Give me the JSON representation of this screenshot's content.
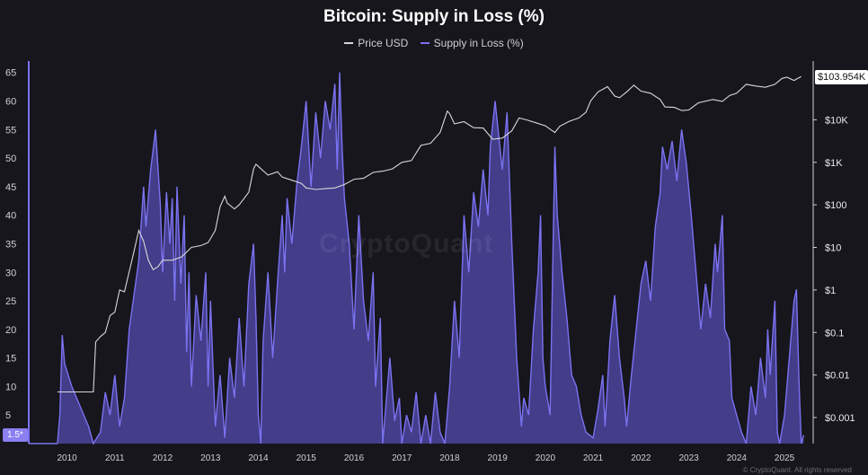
{
  "title": "Bitcoin: Supply in Loss (%)",
  "legend": [
    {
      "label": "Price USD",
      "color": "#d8d8d8"
    },
    {
      "label": "Supply in Loss (%)",
      "color": "#7b72f0"
    }
  ],
  "watermark": "CryptoQuant",
  "copyright": "© CryptoQuant. All rights reserved",
  "last_price_label": "$103.954K",
  "last_loss_label": "1.5*",
  "chart_data": {
    "type": "line",
    "x_ticks": [
      "2010",
      "2011",
      "2012",
      "2013",
      "2014",
      "2015",
      "2016",
      "2017",
      "2018",
      "2019",
      "2020",
      "2021",
      "2022",
      "2023",
      "2024",
      "2025"
    ],
    "y_left_ticks": [
      65,
      60,
      55,
      50,
      45,
      40,
      35,
      30,
      25,
      20,
      15,
      10,
      5
    ],
    "y_left_range": [
      0,
      67
    ],
    "y_right_ticks": [
      "$100K",
      "$10K",
      "$1K",
      "$100",
      "$10",
      "$1",
      "$0.1",
      "$0.01",
      "$0.001"
    ],
    "y_right_scale": "log",
    "x_range": [
      2009.2,
      2025.6
    ],
    "series": [
      {
        "name": "Supply in Loss (%)",
        "axis": "left",
        "color": "#7b72f0",
        "points": [
          [
            2009.2,
            0
          ],
          [
            2009.8,
            0
          ],
          [
            2009.85,
            5
          ],
          [
            2009.9,
            19
          ],
          [
            2009.95,
            14
          ],
          [
            2010.1,
            10
          ],
          [
            2010.3,
            6
          ],
          [
            2010.45,
            3
          ],
          [
            2010.55,
            0
          ],
          [
            2010.7,
            2
          ],
          [
            2010.8,
            9
          ],
          [
            2010.9,
            5
          ],
          [
            2011.0,
            12
          ],
          [
            2011.1,
            3
          ],
          [
            2011.2,
            8
          ],
          [
            2011.3,
            20
          ],
          [
            2011.4,
            26
          ],
          [
            2011.5,
            32
          ],
          [
            2011.6,
            45
          ],
          [
            2011.65,
            38
          ],
          [
            2011.75,
            48
          ],
          [
            2011.85,
            55
          ],
          [
            2011.95,
            42
          ],
          [
            2012.0,
            30
          ],
          [
            2012.08,
            44
          ],
          [
            2012.15,
            35
          ],
          [
            2012.2,
            43
          ],
          [
            2012.25,
            25
          ],
          [
            2012.3,
            45
          ],
          [
            2012.38,
            28
          ],
          [
            2012.45,
            40
          ],
          [
            2012.5,
            16
          ],
          [
            2012.55,
            30
          ],
          [
            2012.6,
            10
          ],
          [
            2012.7,
            26
          ],
          [
            2012.8,
            18
          ],
          [
            2012.9,
            30
          ],
          [
            2012.95,
            10
          ],
          [
            2013.0,
            25
          ],
          [
            2013.1,
            3
          ],
          [
            2013.2,
            12
          ],
          [
            2013.3,
            1
          ],
          [
            2013.4,
            15
          ],
          [
            2013.5,
            8
          ],
          [
            2013.6,
            22
          ],
          [
            2013.7,
            10
          ],
          [
            2013.8,
            28
          ],
          [
            2013.9,
            35
          ],
          [
            2013.95,
            22
          ],
          [
            2014.0,
            5
          ],
          [
            2014.05,
            0
          ],
          [
            2014.1,
            18
          ],
          [
            2014.2,
            30
          ],
          [
            2014.3,
            15
          ],
          [
            2014.4,
            28
          ],
          [
            2014.5,
            40
          ],
          [
            2014.55,
            30
          ],
          [
            2014.6,
            43
          ],
          [
            2014.7,
            35
          ],
          [
            2014.8,
            45
          ],
          [
            2014.9,
            52
          ],
          [
            2015.0,
            60
          ],
          [
            2015.1,
            45
          ],
          [
            2015.2,
            58
          ],
          [
            2015.3,
            50
          ],
          [
            2015.4,
            60
          ],
          [
            2015.5,
            55
          ],
          [
            2015.6,
            63
          ],
          [
            2015.65,
            48
          ],
          [
            2015.7,
            65
          ],
          [
            2015.75,
            52
          ],
          [
            2015.8,
            43
          ],
          [
            2015.9,
            35
          ],
          [
            2016.0,
            20
          ],
          [
            2016.1,
            40
          ],
          [
            2016.2,
            25
          ],
          [
            2016.3,
            18
          ],
          [
            2016.4,
            30
          ],
          [
            2016.45,
            10
          ],
          [
            2016.55,
            22
          ],
          [
            2016.6,
            0
          ],
          [
            2016.75,
            15
          ],
          [
            2016.85,
            4
          ],
          [
            2016.95,
            8
          ],
          [
            2017.0,
            0
          ],
          [
            2017.1,
            5
          ],
          [
            2017.2,
            2
          ],
          [
            2017.3,
            9
          ],
          [
            2017.4,
            0
          ],
          [
            2017.5,
            5
          ],
          [
            2017.6,
            0
          ],
          [
            2017.7,
            9
          ],
          [
            2017.8,
            2
          ],
          [
            2017.9,
            0
          ],
          [
            2018.0,
            10
          ],
          [
            2018.1,
            25
          ],
          [
            2018.2,
            15
          ],
          [
            2018.3,
            40
          ],
          [
            2018.4,
            30
          ],
          [
            2018.5,
            44
          ],
          [
            2018.6,
            38
          ],
          [
            2018.7,
            48
          ],
          [
            2018.8,
            40
          ],
          [
            2018.85,
            52
          ],
          [
            2018.95,
            60
          ],
          [
            2019.05,
            52
          ],
          [
            2019.1,
            48
          ],
          [
            2019.2,
            58
          ],
          [
            2019.3,
            35
          ],
          [
            2019.4,
            15
          ],
          [
            2019.5,
            3
          ],
          [
            2019.55,
            8
          ],
          [
            2019.65,
            5
          ],
          [
            2019.75,
            20
          ],
          [
            2019.85,
            30
          ],
          [
            2019.9,
            40
          ],
          [
            2019.95,
            15
          ],
          [
            2020.0,
            10
          ],
          [
            2020.1,
            5
          ],
          [
            2020.2,
            52
          ],
          [
            2020.25,
            40
          ],
          [
            2020.35,
            30
          ],
          [
            2020.45,
            22
          ],
          [
            2020.55,
            12
          ],
          [
            2020.65,
            10
          ],
          [
            2020.75,
            5
          ],
          [
            2020.85,
            2
          ],
          [
            2021.0,
            1
          ],
          [
            2021.1,
            6
          ],
          [
            2021.2,
            12
          ],
          [
            2021.25,
            3
          ],
          [
            2021.35,
            18
          ],
          [
            2021.45,
            26
          ],
          [
            2021.55,
            15
          ],
          [
            2021.65,
            8
          ],
          [
            2021.7,
            3
          ],
          [
            2021.8,
            12
          ],
          [
            2021.9,
            20
          ],
          [
            2022.0,
            28
          ],
          [
            2022.1,
            32
          ],
          [
            2022.2,
            25
          ],
          [
            2022.3,
            38
          ],
          [
            2022.4,
            44
          ],
          [
            2022.45,
            52
          ],
          [
            2022.55,
            48
          ],
          [
            2022.65,
            53
          ],
          [
            2022.75,
            46
          ],
          [
            2022.85,
            55
          ],
          [
            2022.95,
            49
          ],
          [
            2023.05,
            40
          ],
          [
            2023.15,
            30
          ],
          [
            2023.25,
            20
          ],
          [
            2023.35,
            28
          ],
          [
            2023.45,
            22
          ],
          [
            2023.55,
            35
          ],
          [
            2023.6,
            30
          ],
          [
            2023.7,
            40
          ],
          [
            2023.75,
            20
          ],
          [
            2023.85,
            18
          ],
          [
            2023.9,
            8
          ],
          [
            2024.0,
            5
          ],
          [
            2024.1,
            2
          ],
          [
            2024.2,
            0
          ],
          [
            2024.3,
            10
          ],
          [
            2024.4,
            5
          ],
          [
            2024.5,
            15
          ],
          [
            2024.6,
            8
          ],
          [
            2024.65,
            20
          ],
          [
            2024.7,
            12
          ],
          [
            2024.8,
            25
          ],
          [
            2024.85,
            2
          ],
          [
            2024.9,
            0
          ],
          [
            2025.0,
            5
          ],
          [
            2025.1,
            15
          ],
          [
            2025.2,
            25
          ],
          [
            2025.25,
            27
          ],
          [
            2025.3,
            12
          ],
          [
            2025.35,
            0
          ],
          [
            2025.4,
            1.5
          ]
        ]
      },
      {
        "name": "Price USD",
        "axis": "right",
        "color": "#d8d8d8",
        "points": [
          [
            2009.8,
            0.004
          ],
          [
            2010.0,
            0.004
          ],
          [
            2010.55,
            0.004
          ],
          [
            2010.6,
            0.06
          ],
          [
            2010.7,
            0.08
          ],
          [
            2010.8,
            0.1
          ],
          [
            2010.9,
            0.25
          ],
          [
            2011.0,
            0.3
          ],
          [
            2011.1,
            1
          ],
          [
            2011.2,
            0.9
          ],
          [
            2011.4,
            8
          ],
          [
            2011.5,
            25
          ],
          [
            2011.6,
            14
          ],
          [
            2011.7,
            5
          ],
          [
            2011.8,
            3
          ],
          [
            2011.9,
            3.5
          ],
          [
            2012.0,
            5
          ],
          [
            2012.2,
            5
          ],
          [
            2012.4,
            6
          ],
          [
            2012.6,
            10
          ],
          [
            2012.8,
            11
          ],
          [
            2012.95,
            13
          ],
          [
            2013.1,
            25
          ],
          [
            2013.2,
            90
          ],
          [
            2013.3,
            160
          ],
          [
            2013.35,
            110
          ],
          [
            2013.5,
            80
          ],
          [
            2013.6,
            100
          ],
          [
            2013.7,
            140
          ],
          [
            2013.8,
            200
          ],
          [
            2013.9,
            700
          ],
          [
            2013.95,
            900
          ],
          [
            2014.0,
            800
          ],
          [
            2014.2,
            500
          ],
          [
            2014.4,
            600
          ],
          [
            2014.5,
            450
          ],
          [
            2014.7,
            380
          ],
          [
            2014.9,
            320
          ],
          [
            2015.0,
            250
          ],
          [
            2015.2,
            230
          ],
          [
            2015.4,
            240
          ],
          [
            2015.6,
            250
          ],
          [
            2015.8,
            300
          ],
          [
            2016.0,
            400
          ],
          [
            2016.2,
            420
          ],
          [
            2016.4,
            580
          ],
          [
            2016.6,
            620
          ],
          [
            2016.8,
            700
          ],
          [
            2017.0,
            1000
          ],
          [
            2017.2,
            1100
          ],
          [
            2017.4,
            2500
          ],
          [
            2017.6,
            2800
          ],
          [
            2017.8,
            5000
          ],
          [
            2017.95,
            16000
          ],
          [
            2018.0,
            14000
          ],
          [
            2018.1,
            8000
          ],
          [
            2018.3,
            9000
          ],
          [
            2018.5,
            6500
          ],
          [
            2018.7,
            6400
          ],
          [
            2018.9,
            3500
          ],
          [
            2019.1,
            3700
          ],
          [
            2019.3,
            5500
          ],
          [
            2019.45,
            11000
          ],
          [
            2019.6,
            10000
          ],
          [
            2019.8,
            8500
          ],
          [
            2020.0,
            7200
          ],
          [
            2020.2,
            5000
          ],
          [
            2020.3,
            7000
          ],
          [
            2020.5,
            9200
          ],
          [
            2020.7,
            11000
          ],
          [
            2020.85,
            15000
          ],
          [
            2020.95,
            28000
          ],
          [
            2021.1,
            45000
          ],
          [
            2021.3,
            60000
          ],
          [
            2021.45,
            36000
          ],
          [
            2021.55,
            33000
          ],
          [
            2021.7,
            45000
          ],
          [
            2021.85,
            65000
          ],
          [
            2022.0,
            47000
          ],
          [
            2022.2,
            42000
          ],
          [
            2022.4,
            30000
          ],
          [
            2022.5,
            20000
          ],
          [
            2022.7,
            19500
          ],
          [
            2022.85,
            16500
          ],
          [
            2023.0,
            17000
          ],
          [
            2023.2,
            25000
          ],
          [
            2023.5,
            30000
          ],
          [
            2023.7,
            27000
          ],
          [
            2023.85,
            37000
          ],
          [
            2024.0,
            42000
          ],
          [
            2024.2,
            68000
          ],
          [
            2024.4,
            62000
          ],
          [
            2024.6,
            58000
          ],
          [
            2024.8,
            68000
          ],
          [
            2024.95,
            94000
          ],
          [
            2025.05,
            100000
          ],
          [
            2025.2,
            84000
          ],
          [
            2025.35,
            104000
          ]
        ]
      }
    ]
  }
}
